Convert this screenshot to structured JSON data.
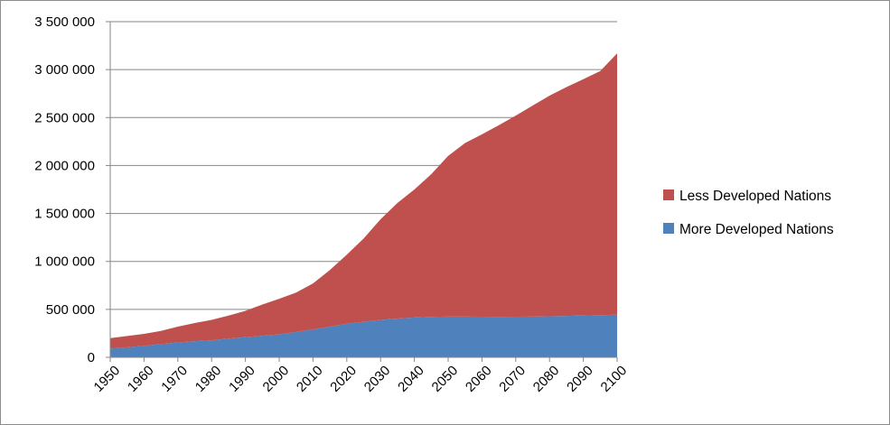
{
  "chart_data": {
    "type": "area",
    "stacked": true,
    "title": "",
    "xlabel": "",
    "ylabel": "",
    "x": [
      1950,
      1955,
      1960,
      1965,
      1970,
      1975,
      1980,
      1985,
      1990,
      1995,
      2000,
      2005,
      2010,
      2015,
      2020,
      2025,
      2030,
      2035,
      2040,
      2045,
      2050,
      2055,
      2060,
      2065,
      2070,
      2075,
      2080,
      2085,
      2090,
      2095,
      2100
    ],
    "x_tick_labels": [
      "1950",
      "1960",
      "1970",
      "1980",
      "1990",
      "2000",
      "2010",
      "2020",
      "2030",
      "2040",
      "2050",
      "2060",
      "2070",
      "2080",
      "2090",
      "2100"
    ],
    "y_tick_labels": [
      "0",
      "500 000",
      "1 000 000",
      "1 500 000",
      "2 000 000",
      "2 500 000",
      "3 000 000",
      "3 500 000"
    ],
    "ylim": [
      0,
      3500000
    ],
    "grid": "horizontal",
    "legend_position": "right",
    "series": [
      {
        "name": "More Developed Nations",
        "color": "#4f81bd",
        "values": [
          90000,
          105000,
          120000,
          138000,
          155000,
          168000,
          178000,
          195000,
          210000,
          225000,
          240000,
          265000,
          290000,
          320000,
          350000,
          370000,
          390000,
          405000,
          415000,
          422000,
          425000,
          425000,
          423000,
          422000,
          423000,
          425000,
          428000,
          432000,
          436000,
          440000,
          445000
        ]
      },
      {
        "name": "Less Developed Nations",
        "color": "#c0504d",
        "values": [
          110000,
          117000,
          125000,
          137000,
          165000,
          190000,
          212000,
          240000,
          275000,
          325000,
          370000,
          410000,
          480000,
          590000,
          720000,
          870000,
          1050000,
          1205000,
          1335000,
          1488000,
          1675000,
          1810000,
          1902000,
          1998000,
          2097000,
          2200000,
          2300000,
          2386000,
          2464000,
          2545000,
          2725000
        ]
      }
    ]
  }
}
